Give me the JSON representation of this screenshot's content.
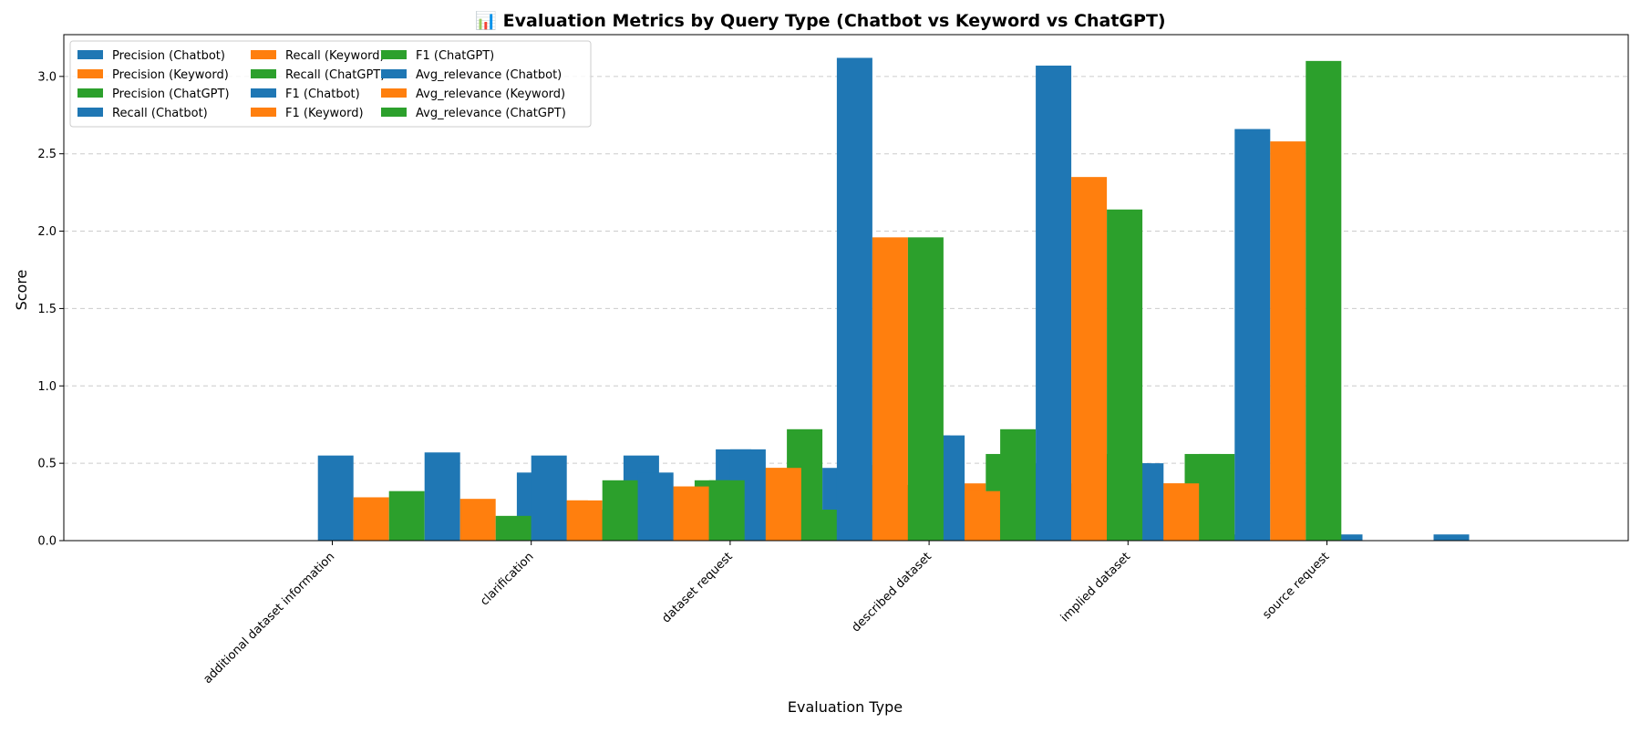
{
  "chart_data": {
    "type": "bar",
    "title": "📊 Evaluation Metrics by Query Type (Chatbot vs Keyword vs ChatGPT)",
    "xlabel": "Evaluation Type",
    "ylabel": "Score",
    "ylim": [
      0,
      3.27
    ],
    "yticks": [
      "0.0",
      "0.5",
      "1.0",
      "1.5",
      "2.0",
      "2.5",
      "3.0"
    ],
    "grid": true,
    "legend_position": "top-left",
    "categories": [
      "additional dataset information",
      "clarification",
      "dataset request",
      "described dataset",
      "implied dataset",
      "source request"
    ],
    "colors": {
      "chatbot": "#1f77b4",
      "keyword": "#ff7f0e",
      "chatgpt": "#2ca02c"
    },
    "series": [
      {
        "name": "Precision (Chatbot)",
        "color": "#1f77b4",
        "values": [
          0,
          0.55,
          0.44,
          0.59,
          0.68,
          0.5
        ]
      },
      {
        "name": "Precision (Keyword)",
        "color": "#ff7f0e",
        "values": [
          0,
          0.28,
          0.26,
          0.47,
          0.37,
          0.37
        ]
      },
      {
        "name": "Precision (ChatGPT)",
        "color": "#2ca02c",
        "values": [
          0,
          0.32,
          0.2,
          0.72,
          0.56,
          0.56
        ]
      },
      {
        "name": "Recall (Chatbot)",
        "color": "#1f77b4",
        "values": [
          0,
          0.57,
          0.55,
          0.47,
          0.5,
          0.04
        ]
      },
      {
        "name": "Recall (Keyword)",
        "color": "#ff7f0e",
        "values": [
          0,
          0.27,
          0.35,
          0.49,
          0.37,
          0
        ]
      },
      {
        "name": "Recall (ChatGPT)",
        "color": "#2ca02c",
        "values": [
          0,
          0.16,
          0.39,
          0.36,
          0.56,
          0
        ]
      },
      {
        "name": "F1 (Chatbot)",
        "color": "#1f77b4",
        "values": [
          0,
          0.55,
          0.59,
          0.68,
          0.5,
          0.04
        ]
      },
      {
        "name": "F1 (Keyword)",
        "color": "#ff7f0e",
        "values": [
          0,
          0.26,
          0.47,
          0.32,
          0.37,
          0
        ]
      },
      {
        "name": "F1 (ChatGPT)",
        "color": "#2ca02c",
        "values": [
          0,
          0.39,
          0.2,
          0.72,
          0.56,
          0
        ]
      },
      {
        "name": "Avg_relevance (Chatbot)",
        "color": "#1f77b4",
        "values": [
          0,
          0.44,
          3.12,
          3.07,
          2.66,
          0.04
        ]
      },
      {
        "name": "Avg_relevance (Keyword)",
        "color": "#ff7f0e",
        "values": [
          0,
          0.35,
          1.96,
          2.35,
          2.58,
          0
        ]
      },
      {
        "name": "Avg_relevance (ChatGPT)",
        "color": "#2ca02c",
        "values": [
          0,
          0.39,
          1.96,
          2.14,
          3.1,
          0
        ]
      }
    ]
  }
}
